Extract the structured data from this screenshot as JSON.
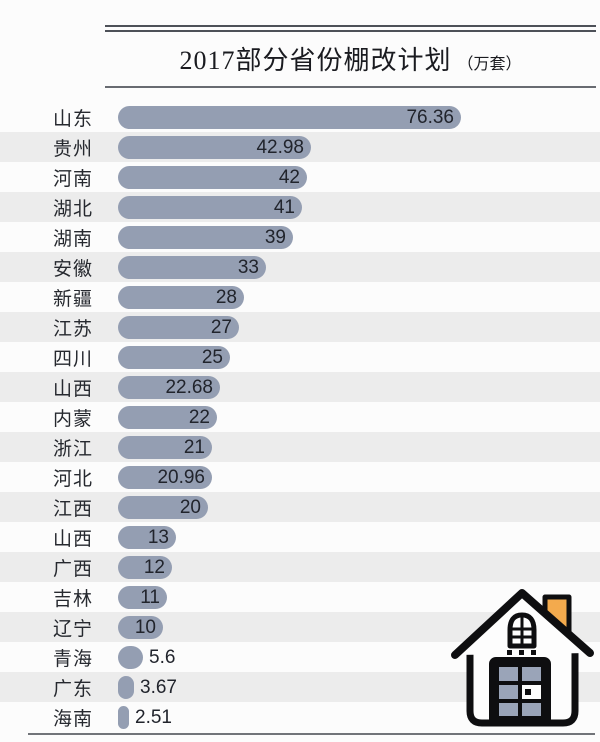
{
  "header": {
    "title": "2017部分省份棚改计划",
    "unit": "（万套）"
  },
  "chart_data": {
    "type": "bar",
    "orientation": "horizontal",
    "title": "2017部分省份棚改计划",
    "unit_label": "万套",
    "categories": [
      "山东",
      "贵州",
      "河南",
      "湖北",
      "湖南",
      "安徽",
      "新疆",
      "江苏",
      "四川",
      "山西",
      "内蒙",
      "浙江",
      "河北",
      "江西",
      "山西",
      "广西",
      "吉林",
      "辽宁",
      "青海",
      "广东",
      "海南"
    ],
    "values": [
      76.36,
      42.98,
      42,
      41,
      39,
      33,
      28,
      27,
      25,
      22.68,
      22,
      21,
      20.96,
      20,
      13,
      12,
      11,
      10,
      5.6,
      3.67,
      2.51
    ],
    "value_labels": [
      "76.36",
      "42.98",
      "42",
      "41",
      "39",
      "33",
      "28",
      "27",
      "25",
      "22.68",
      "22",
      "21",
      "20.96",
      "20",
      "13",
      "12",
      "11",
      "10",
      "5.6",
      "3.67",
      "2.51"
    ],
    "xlim": [
      0,
      80
    ],
    "grid": false,
    "legend_position": "none",
    "value_label_inside_min": 10
  },
  "style": {
    "background_color": "#fcfcfc",
    "stripe_color": "#ececec",
    "bar_color": "#949eb2",
    "label_color": "#26292f",
    "value_color": "#21242c",
    "rule_color": "#4d5158",
    "title_color": "#1a1b20",
    "house_outline_color": "#0e0e10",
    "house_fill_color": "#fdfdfd",
    "house_chimney_color": "#f3aa4d",
    "house_pane_color": "#9aa4b8"
  },
  "icons": [
    {
      "name": "house-icon"
    }
  ]
}
